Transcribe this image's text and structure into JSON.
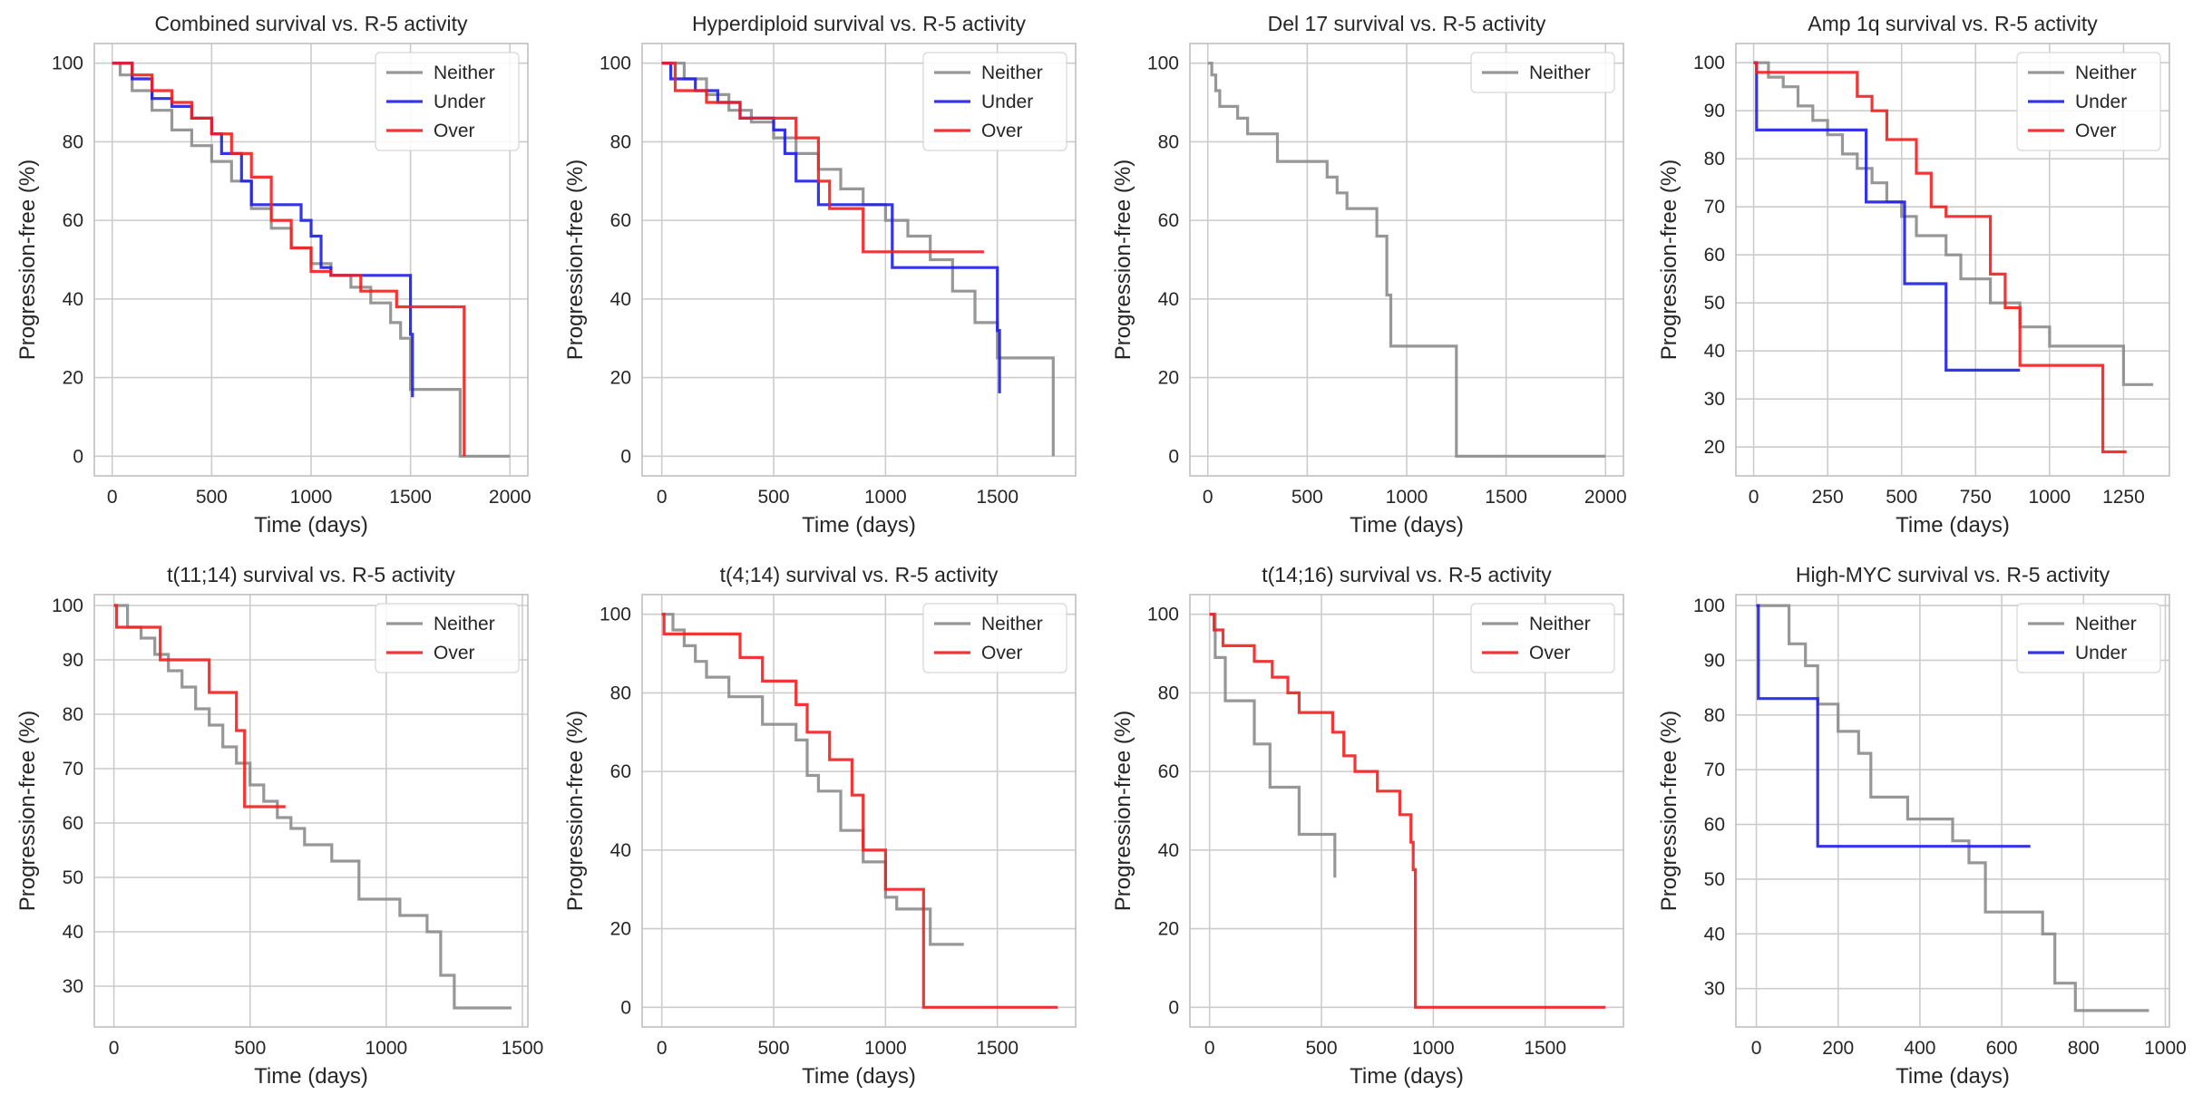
{
  "figure": {
    "background": "#ffffff"
  },
  "colors": {
    "Neither": "#8c8c8c",
    "Under": "#1f1fe6",
    "Over": "#f21f1f",
    "grid": "#cccccc",
    "frame": "#c0c0c0"
  },
  "chart_data": [
    {
      "type": "line",
      "title": "Combined survival vs. R-5 activity",
      "xlabel": "Time (days)",
      "ylabel": "Progression-free (%)",
      "xlim": [
        -90,
        2090
      ],
      "ylim": [
        -5,
        105
      ],
      "xticks": [
        0,
        500,
        1000,
        1500,
        2000
      ],
      "yticks": [
        0,
        20,
        40,
        60,
        80,
        100
      ],
      "legend": "top-right",
      "series": [
        {
          "name": "Neither",
          "x": [
            0,
            40,
            100,
            200,
            300,
            400,
            500,
            600,
            700,
            800,
            900,
            1000,
            1100,
            1200,
            1300,
            1400,
            1450,
            1500,
            1750,
            2000
          ],
          "y": [
            100,
            97,
            93,
            88,
            83,
            79,
            75,
            70,
            63,
            58,
            53,
            49,
            46,
            43,
            39,
            34,
            30,
            17,
            0,
            0
          ]
        },
        {
          "name": "Under",
          "x": [
            0,
            100,
            200,
            300,
            400,
            500,
            550,
            650,
            700,
            950,
            1000,
            1050,
            1100,
            1430,
            1500,
            1510
          ],
          "y": [
            100,
            96,
            91,
            89,
            86,
            82,
            77,
            70,
            64,
            60,
            56,
            48,
            46,
            46,
            31,
            15
          ]
        },
        {
          "name": "Over",
          "x": [
            0,
            100,
            200,
            300,
            400,
            500,
            600,
            700,
            800,
            900,
            1000,
            1100,
            1250,
            1430,
            1770
          ],
          "y": [
            100,
            97,
            93,
            90,
            86,
            82,
            77,
            71,
            60,
            53,
            47,
            46,
            42,
            38,
            0
          ]
        }
      ]
    },
    {
      "type": "line",
      "title": "Hyperdiploid survival vs. R-5 activity",
      "xlabel": "Time (days)",
      "ylabel": "Progression-free (%)",
      "xlim": [
        -88,
        1850
      ],
      "ylim": [
        -5,
        105
      ],
      "xticks": [
        0,
        500,
        1000,
        1500
      ],
      "yticks": [
        0,
        20,
        40,
        60,
        80,
        100
      ],
      "legend": "top-right",
      "series": [
        {
          "name": "Neither",
          "x": [
            0,
            100,
            200,
            300,
            400,
            500,
            600,
            700,
            800,
            900,
            1000,
            1100,
            1200,
            1300,
            1400,
            1500,
            1750
          ],
          "y": [
            100,
            96,
            92,
            88,
            85,
            81,
            77,
            73,
            68,
            64,
            60,
            56,
            50,
            42,
            34,
            25,
            0
          ]
        },
        {
          "name": "Under",
          "x": [
            0,
            40,
            150,
            250,
            350,
            500,
            550,
            600,
            700,
            1000,
            1030,
            1420,
            1500,
            1510
          ],
          "y": [
            100,
            96,
            93,
            90,
            86,
            83,
            77,
            70,
            64,
            64,
            48,
            48,
            32,
            16
          ]
        },
        {
          "name": "Over",
          "x": [
            0,
            60,
            200,
            350,
            600,
            700,
            750,
            900,
            1440
          ],
          "y": [
            100,
            93,
            90,
            86,
            81,
            70,
            63,
            52,
            52
          ]
        }
      ]
    },
    {
      "type": "line",
      "title": "Del 17 survival vs. R-5 activity",
      "xlabel": "Time (days)",
      "ylabel": "Progression-free (%)",
      "xlim": [
        -90,
        2090
      ],
      "ylim": [
        -5,
        105
      ],
      "xticks": [
        0,
        500,
        1000,
        1500,
        2000
      ],
      "yticks": [
        0,
        20,
        40,
        60,
        80,
        100
      ],
      "legend": "top-right",
      "series": [
        {
          "name": "Neither",
          "x": [
            0,
            20,
            40,
            60,
            150,
            200,
            350,
            600,
            650,
            700,
            850,
            900,
            920,
            1250,
            2000
          ],
          "y": [
            100,
            97,
            93,
            89,
            86,
            82,
            75,
            71,
            67,
            63,
            56,
            41,
            28,
            0,
            0
          ]
        }
      ]
    },
    {
      "type": "line",
      "title": "Amp 1q survival vs. R-5 activity",
      "xlabel": "Time (days)",
      "ylabel": "Progression-free (%)",
      "xlim": [
        -60,
        1405
      ],
      "ylim": [
        14,
        104
      ],
      "xticks": [
        0,
        250,
        500,
        750,
        1000,
        1250
      ],
      "yticks": [
        20,
        30,
        40,
        50,
        60,
        70,
        80,
        90,
        100
      ],
      "legend": "top-right",
      "series": [
        {
          "name": "Neither",
          "x": [
            0,
            50,
            100,
            150,
            200,
            250,
            300,
            350,
            400,
            450,
            500,
            550,
            650,
            700,
            800,
            900,
            1000,
            1250,
            1350
          ],
          "y": [
            100,
            97,
            95,
            91,
            88,
            85,
            81,
            78,
            75,
            71,
            68,
            64,
            60,
            55,
            50,
            45,
            41,
            33,
            33
          ]
        },
        {
          "name": "Under",
          "x": [
            0,
            10,
            380,
            510,
            650,
            900
          ],
          "y": [
            100,
            86,
            71,
            54,
            36,
            36
          ]
        },
        {
          "name": "Over",
          "x": [
            0,
            10,
            350,
            400,
            450,
            550,
            600,
            650,
            800,
            850,
            900,
            1180,
            1260
          ],
          "y": [
            100,
            98,
            93,
            90,
            84,
            77,
            70,
            68,
            56,
            49,
            37,
            19,
            19
          ]
        }
      ]
    },
    {
      "type": "line",
      "title": "t(11;14) survival vs. R-5 activity",
      "xlabel": "Time (days)",
      "ylabel": "Progression-free (%)",
      "xlim": [
        -72,
        1520
      ],
      "ylim": [
        22.5,
        102
      ],
      "xticks": [
        0,
        500,
        1000,
        1500
      ],
      "yticks": [
        30,
        40,
        50,
        60,
        70,
        80,
        90,
        100
      ],
      "legend": "top-right",
      "series": [
        {
          "name": "Neither",
          "x": [
            0,
            50,
            100,
            150,
            200,
            250,
            300,
            350,
            400,
            450,
            500,
            550,
            600,
            650,
            700,
            800,
            900,
            1050,
            1150,
            1200,
            1250,
            1460
          ],
          "y": [
            100,
            96,
            94,
            91,
            88,
            85,
            81,
            78,
            74,
            71,
            67,
            64,
            61,
            59,
            56,
            53,
            46,
            43,
            40,
            32,
            26,
            26
          ]
        },
        {
          "name": "Over",
          "x": [
            0,
            10,
            170,
            350,
            450,
            480,
            630
          ],
          "y": [
            100,
            96,
            90,
            84,
            77,
            63,
            63
          ]
        }
      ]
    },
    {
      "type": "line",
      "title": "t(4;14) survival vs. R-5 activity",
      "xlabel": "Time (days)",
      "ylabel": "Progression-free (%)",
      "xlim": [
        -88,
        1850
      ],
      "ylim": [
        -5,
        105
      ],
      "xticks": [
        0,
        500,
        1000,
        1500
      ],
      "yticks": [
        0,
        20,
        40,
        60,
        80,
        100
      ],
      "legend": "top-right",
      "series": [
        {
          "name": "Neither",
          "x": [
            0,
            50,
            100,
            150,
            200,
            300,
            450,
            600,
            650,
            700,
            800,
            900,
            1000,
            1050,
            1200,
            1350
          ],
          "y": [
            100,
            96,
            92,
            88,
            84,
            79,
            72,
            68,
            59,
            55,
            45,
            37,
            28,
            25,
            16,
            16
          ]
        },
        {
          "name": "Over",
          "x": [
            0,
            10,
            350,
            450,
            600,
            650,
            750,
            850,
            900,
            1000,
            1170,
            1770
          ],
          "y": [
            100,
            95,
            89,
            83,
            77,
            70,
            63,
            54,
            40,
            30,
            0,
            0
          ]
        }
      ]
    },
    {
      "type": "line",
      "title": "t(14;16) survival vs. R-5 activity",
      "xlabel": "Time (days)",
      "ylabel": "Progression-free (%)",
      "xlim": [
        -88,
        1850
      ],
      "ylim": [
        -5,
        105
      ],
      "xticks": [
        0,
        500,
        1000,
        1500
      ],
      "yticks": [
        0,
        20,
        40,
        60,
        80,
        100
      ],
      "legend": "top-right",
      "series": [
        {
          "name": "Neither",
          "x": [
            0,
            25,
            70,
            200,
            270,
            400,
            550,
            560
          ],
          "y": [
            100,
            89,
            78,
            67,
            56,
            44,
            44,
            33
          ]
        },
        {
          "name": "Over",
          "x": [
            0,
            20,
            60,
            200,
            280,
            350,
            400,
            550,
            600,
            650,
            750,
            850,
            900,
            910,
            920,
            1770
          ],
          "y": [
            100,
            96,
            92,
            88,
            84,
            80,
            75,
            70,
            64,
            60,
            55,
            49,
            42,
            35,
            0,
            0
          ]
        }
      ]
    },
    {
      "type": "line",
      "title": "High-MYC survival vs. R-5 activity",
      "xlabel": "Time (days)",
      "ylabel": "Progression-free (%)",
      "xlim": [
        -50,
        1010
      ],
      "ylim": [
        23,
        102
      ],
      "xticks": [
        0,
        200,
        400,
        600,
        800,
        1000
      ],
      "yticks": [
        30,
        40,
        50,
        60,
        70,
        80,
        90,
        100
      ],
      "legend": "top-right",
      "series": [
        {
          "name": "Neither",
          "x": [
            0,
            80,
            120,
            150,
            200,
            250,
            280,
            370,
            480,
            520,
            560,
            700,
            730,
            780,
            960
          ],
          "y": [
            100,
            93,
            89,
            82,
            77,
            73,
            65,
            61,
            57,
            53,
            44,
            40,
            31,
            26,
            26
          ]
        },
        {
          "name": "Under",
          "x": [
            0,
            5,
            150,
            670
          ],
          "y": [
            100,
            83,
            56,
            56
          ]
        }
      ]
    }
  ]
}
